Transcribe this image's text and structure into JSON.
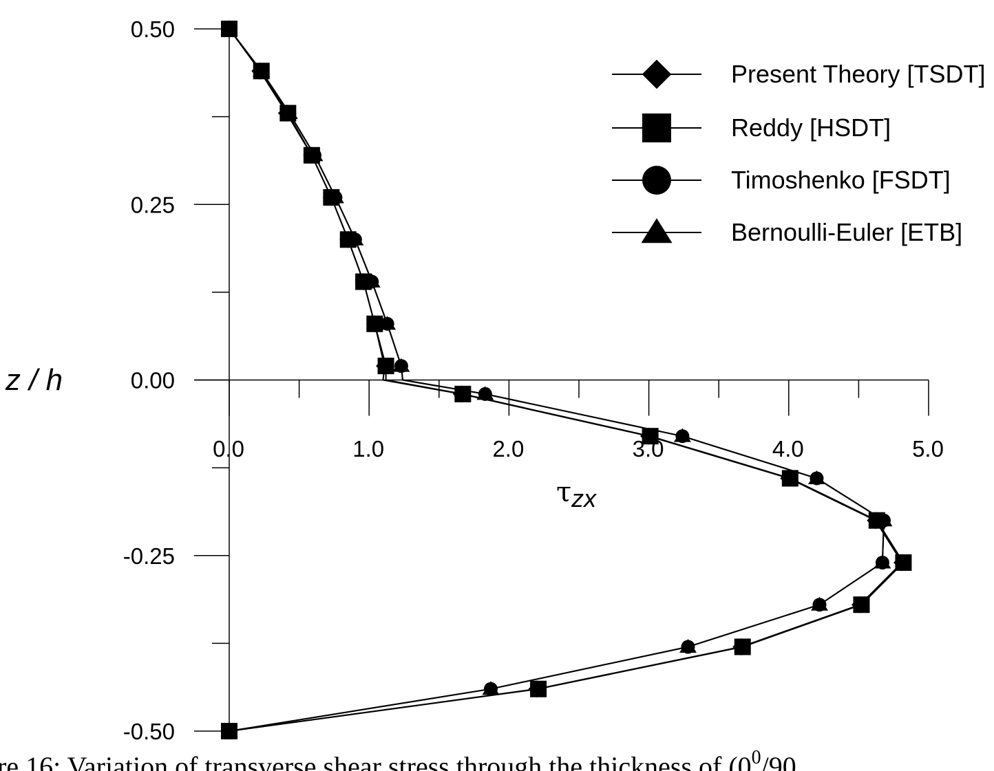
{
  "chart_data": {
    "type": "line",
    "xlabel": {
      "base": "τ",
      "sub": "zx"
    },
    "ylabel": "z / h",
    "xlim": [
      0,
      5
    ],
    "ylim": [
      -0.5,
      0.5
    ],
    "x_ticks": [
      {
        "value": 0,
        "label": "0.0"
      },
      {
        "value": 1,
        "label": "1.0"
      },
      {
        "value": 2,
        "label": "2.0"
      },
      {
        "value": 3,
        "label": "3.0"
      },
      {
        "value": 4,
        "label": "4.0"
      },
      {
        "value": 5,
        "label": "5.0"
      }
    ],
    "y_ticks": [
      {
        "value": 0.5,
        "label": "0.50"
      },
      {
        "value": 0.25,
        "label": "0.25"
      },
      {
        "value": 0.0,
        "label": "0.00"
      },
      {
        "value": -0.25,
        "label": "-0.25"
      },
      {
        "value": -0.5,
        "label": "-0.50"
      }
    ],
    "grid": false,
    "legend_position": "top-right",
    "series": [
      {
        "name": "Present Theory [TSDT]",
        "marker": "diamond",
        "points": [
          [
            0,
            0.5
          ],
          [
            0.22,
            0.44
          ],
          [
            0.41,
            0.38
          ],
          [
            0.59,
            0.32
          ],
          [
            0.73,
            0.26
          ],
          [
            0.85,
            0.2
          ],
          [
            0.96,
            0.14
          ],
          [
            1.04,
            0.08
          ],
          [
            1.11,
            0.02
          ],
          [
            1.1,
            0.0
          ],
          [
            1.66,
            -0.02
          ],
          [
            3.0,
            -0.08
          ],
          [
            4.0,
            -0.14
          ],
          [
            4.62,
            -0.2
          ],
          [
            4.81,
            -0.26
          ],
          [
            4.51,
            -0.32
          ],
          [
            3.66,
            -0.38
          ],
          [
            2.2,
            -0.44
          ],
          [
            0,
            -0.5
          ]
        ]
      },
      {
        "name": "Reddy [HSDT]",
        "marker": "square",
        "points": [
          [
            0,
            0.5
          ],
          [
            0.23,
            0.44
          ],
          [
            0.42,
            0.38
          ],
          [
            0.59,
            0.32
          ],
          [
            0.73,
            0.26
          ],
          [
            0.85,
            0.2
          ],
          [
            0.96,
            0.14
          ],
          [
            1.04,
            0.08
          ],
          [
            1.12,
            0.02
          ],
          [
            1.12,
            0.0
          ],
          [
            1.67,
            -0.02
          ],
          [
            3.01,
            -0.08
          ],
          [
            4.01,
            -0.14
          ],
          [
            4.63,
            -0.2
          ],
          [
            4.82,
            -0.26
          ],
          [
            4.52,
            -0.32
          ],
          [
            3.67,
            -0.38
          ],
          [
            2.21,
            -0.44
          ],
          [
            0,
            -0.5
          ]
        ]
      },
      {
        "name": "Timoshenko [FSDT]",
        "marker": "circle",
        "points": [
          [
            0,
            0.5
          ],
          [
            0.23,
            0.44
          ],
          [
            0.43,
            0.38
          ],
          [
            0.61,
            0.32
          ],
          [
            0.76,
            0.26
          ],
          [
            0.9,
            0.2
          ],
          [
            1.02,
            0.14
          ],
          [
            1.13,
            0.08
          ],
          [
            1.23,
            0.02
          ],
          [
            1.24,
            0.0
          ],
          [
            1.83,
            -0.02
          ],
          [
            3.24,
            -0.08
          ],
          [
            4.2,
            -0.14
          ],
          [
            4.68,
            -0.2
          ],
          [
            4.67,
            -0.26
          ],
          [
            4.22,
            -0.32
          ],
          [
            3.28,
            -0.38
          ],
          [
            1.87,
            -0.44
          ],
          [
            0,
            -0.5
          ]
        ]
      },
      {
        "name": "Bernoulli-Euler [ETB]",
        "marker": "triangle",
        "points": [
          [
            0,
            0.5
          ],
          [
            0.23,
            0.44
          ],
          [
            0.43,
            0.38
          ],
          [
            0.61,
            0.32
          ],
          [
            0.76,
            0.26
          ],
          [
            0.9,
            0.2
          ],
          [
            1.02,
            0.14
          ],
          [
            1.13,
            0.08
          ],
          [
            1.23,
            0.02
          ],
          [
            1.24,
            0.0
          ],
          [
            1.83,
            -0.02
          ],
          [
            3.24,
            -0.08
          ],
          [
            4.2,
            -0.14
          ],
          [
            4.68,
            -0.2
          ],
          [
            4.67,
            -0.26
          ],
          [
            4.22,
            -0.32
          ],
          [
            3.28,
            -0.38
          ],
          [
            1.87,
            -0.44
          ],
          [
            0,
            -0.5
          ]
        ]
      }
    ]
  },
  "caption": {
    "text_prefix": "re 16: Variation of transverse shear stress through the thickness of (0",
    "superscript": "0",
    "text_suffix": "/90"
  }
}
